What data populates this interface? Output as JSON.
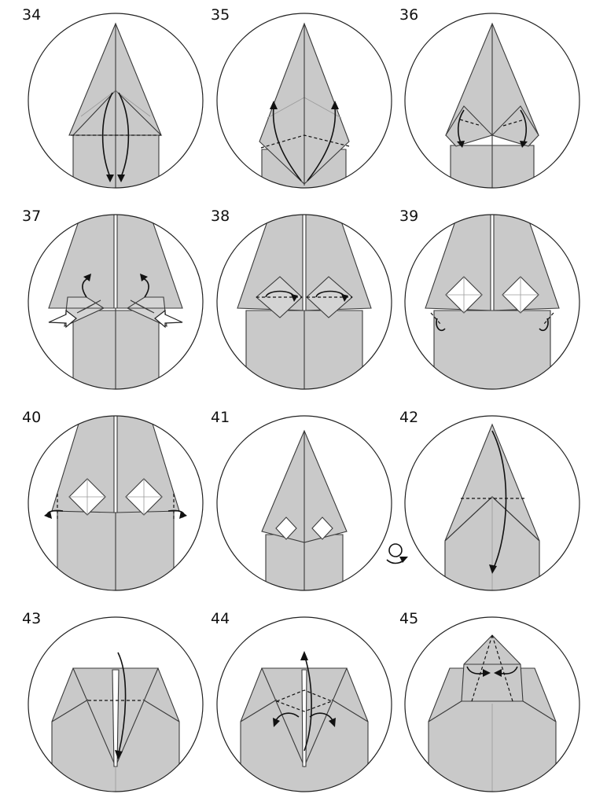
{
  "steps": [
    {
      "number": "34",
      "action": "valley-fold-both-flaps-down"
    },
    {
      "number": "35",
      "action": "unfold-flaps-up"
    },
    {
      "number": "36",
      "action": "small-side-folds"
    },
    {
      "number": "37",
      "action": "squash-fold-sides"
    },
    {
      "number": "38",
      "action": "petal-fold-squares"
    },
    {
      "number": "39",
      "action": "fold-corners-behind"
    },
    {
      "number": "40",
      "action": "fold-sides-behind"
    },
    {
      "number": "41",
      "action": "turn-over"
    },
    {
      "number": "42",
      "action": "fold-tip-down"
    },
    {
      "number": "43",
      "action": "fold-tip-back-up"
    },
    {
      "number": "44",
      "action": "swivel-fold-sides"
    },
    {
      "number": "45",
      "action": "fold-flaps-to-center"
    }
  ],
  "symbols": {
    "turn_over": "turn-over-icon",
    "push": "push-arrow-icon",
    "valley_fold": "valley-fold-line",
    "fold_arrow": "fold-arrow"
  },
  "colors": {
    "paper": "#c9c9c9",
    "paper_white_side": "#ffffff",
    "outline": "#3a3a3a"
  }
}
